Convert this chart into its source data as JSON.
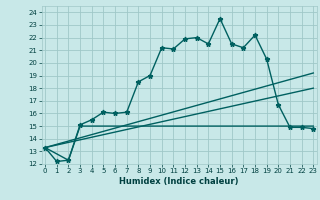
{
  "xlabel": "Humidex (Indice chaleur)",
  "bg_color": "#c8e8e8",
  "grid_color": "#a0c8c8",
  "line_color": "#006060",
  "x_ticks": [
    0,
    1,
    2,
    3,
    4,
    5,
    6,
    7,
    8,
    9,
    10,
    11,
    12,
    13,
    14,
    15,
    16,
    17,
    18,
    19,
    20,
    21,
    22,
    23
  ],
  "ylim": [
    12,
    24.5
  ],
  "xlim": [
    -0.3,
    23.3
  ],
  "yticks": [
    12,
    13,
    14,
    15,
    16,
    17,
    18,
    19,
    20,
    21,
    22,
    23,
    24
  ],
  "line1_x": [
    0,
    1,
    2,
    3,
    4,
    5,
    6,
    7,
    8,
    9,
    10,
    11,
    12,
    13,
    14,
    15,
    16,
    17,
    18,
    19,
    20,
    21,
    22,
    23
  ],
  "line1_y": [
    13.3,
    12.2,
    12.3,
    15.1,
    15.5,
    16.1,
    16.0,
    16.1,
    18.5,
    19.0,
    21.2,
    21.1,
    21.9,
    22.0,
    21.5,
    23.5,
    21.5,
    21.2,
    22.2,
    20.3,
    16.7,
    14.9,
    14.9,
    14.8
  ],
  "line2_x": [
    0,
    2,
    3,
    23
  ],
  "line2_y": [
    13.3,
    12.3,
    15.0,
    15.0
  ],
  "line3_x": [
    0,
    23
  ],
  "line3_y": [
    13.3,
    19.2
  ],
  "line4_x": [
    0,
    23
  ],
  "line4_y": [
    13.3,
    18.0
  ],
  "marker_style": "*",
  "marker_size": 3.5,
  "line_width": 1.0
}
